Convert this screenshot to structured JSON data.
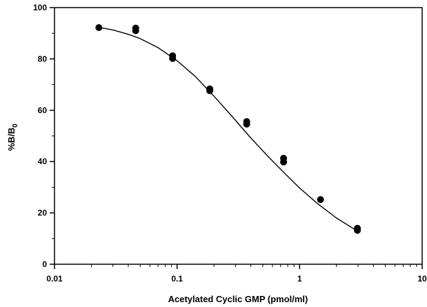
{
  "chart_data": {
    "type": "scatter",
    "xlabel": "Acetylated Cyclic GMP (pmol/ml)",
    "ylabel": "%B/B",
    "ylabel_subscript": "0",
    "x_scale": "log",
    "xlim": [
      0.01,
      10
    ],
    "ylim": [
      0,
      100
    ],
    "x_tick_labels": [
      "0.01",
      "0.1",
      "1",
      "10"
    ],
    "y_tick_labels": [
      "0",
      "20",
      "40",
      "60",
      "80",
      "100"
    ],
    "grid": false,
    "series": [
      {
        "points": [
          {
            "x": 0.023,
            "y": 92.2
          },
          {
            "x": 0.046,
            "y": 92.0
          },
          {
            "x": 0.046,
            "y": 91.0
          },
          {
            "x": 0.092,
            "y": 81.2
          },
          {
            "x": 0.092,
            "y": 80.2
          },
          {
            "x": 0.185,
            "y": 68.3
          },
          {
            "x": 0.185,
            "y": 67.6
          },
          {
            "x": 0.37,
            "y": 55.6
          },
          {
            "x": 0.37,
            "y": 54.6
          },
          {
            "x": 0.74,
            "y": 41.3
          },
          {
            "x": 0.74,
            "y": 39.8
          },
          {
            "x": 1.48,
            "y": 25.2
          },
          {
            "x": 2.96,
            "y": 14.0
          },
          {
            "x": 2.96,
            "y": 13.2
          }
        ],
        "fit_curve": {
          "x": [
            0.023,
            0.03,
            0.04,
            0.05,
            0.07,
            0.1,
            0.14,
            0.2,
            0.28,
            0.4,
            0.55,
            0.75,
            1.0,
            1.4,
            2.0,
            2.96
          ],
          "y": [
            92.3,
            91.3,
            89.6,
            87.9,
            84.4,
            79.3,
            73.3,
            65.5,
            57.7,
            49.2,
            42.1,
            35.6,
            29.7,
            23.6,
            18.0,
            12.9
          ]
        }
      }
    ]
  }
}
